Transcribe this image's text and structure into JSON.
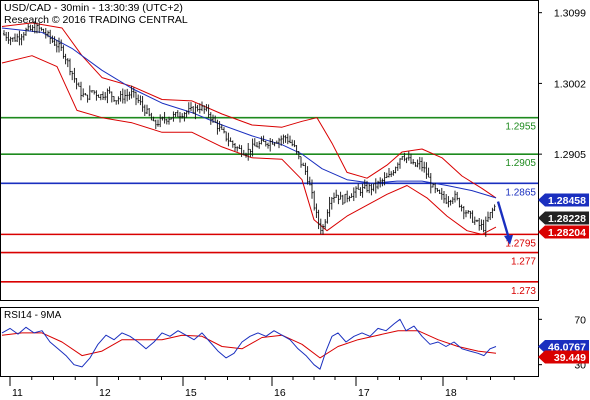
{
  "header": {
    "title": "USD/CAD - 30min - 13:30:39 (UTC+2)",
    "copyright": "Research © 2016 TRADING CENTRAL"
  },
  "rsi_panel": {
    "label": "RSI14 - 9MA"
  },
  "chart_data": [
    {
      "type": "candlestick",
      "ylim": [
        1.2705,
        1.3115
      ],
      "y_ticks": [
        "1.3099",
        "1.3002",
        "1.2905"
      ],
      "x_ticks": [
        "11",
        "12",
        "15",
        "16",
        "17",
        "18"
      ],
      "levels": [
        {
          "value": 1.2955,
          "label": "1.2955",
          "color": "#1e8a1e"
        },
        {
          "value": 1.2905,
          "label": "1.2905",
          "color": "#1e8a1e"
        },
        {
          "value": 1.2865,
          "label": "1.2865",
          "color": "#1a2fbf"
        },
        {
          "value": 1.2795,
          "label": "1.2795",
          "color": "#d90000"
        },
        {
          "value": 1.277,
          "label": "1.277",
          "color": "#d90000"
        },
        {
          "value": 1.273,
          "label": "1.273",
          "color": "#d90000"
        }
      ],
      "price_tags": [
        {
          "value": 1.28458,
          "label": "1.28458",
          "bg": "#1a2fbf",
          "fg": "#ffffff"
        },
        {
          "value": 1.28228,
          "label": "1.28228",
          "bg": "#222222",
          "fg": "#ffffff"
        },
        {
          "value": 1.28204,
          "label": "1.28204",
          "bg": "#d90000",
          "fg": "#ffffff"
        }
      ],
      "price_path": [
        [
          0,
          1.307
        ],
        [
          12,
          1.3062
        ],
        [
          24,
          1.3074
        ],
        [
          36,
          1.3078
        ],
        [
          44,
          1.307
        ],
        [
          52,
          1.3058
        ],
        [
          60,
          1.3048
        ],
        [
          66,
          1.303
        ],
        [
          72,
          1.301
        ],
        [
          78,
          1.299
        ],
        [
          84,
          1.2982
        ],
        [
          90,
          1.2992
        ],
        [
          98,
          1.2985
        ],
        [
          106,
          1.299
        ],
        [
          114,
          1.298
        ],
        [
          122,
          1.2985
        ],
        [
          130,
          1.2988
        ],
        [
          138,
          1.2975
        ],
        [
          146,
          1.296
        ],
        [
          152,
          1.2945
        ],
        [
          158,
          1.295
        ],
        [
          166,
          1.2955
        ],
        [
          174,
          1.2958
        ],
        [
          182,
          1.2962
        ],
        [
          190,
          1.2965
        ],
        [
          198,
          1.297
        ],
        [
          206,
          1.2962
        ],
        [
          212,
          1.295
        ],
        [
          220,
          1.2935
        ],
        [
          228,
          1.2922
        ],
        [
          236,
          1.2912
        ],
        [
          244,
          1.2908
        ],
        [
          252,
          1.2915
        ],
        [
          260,
          1.292
        ],
        [
          268,
          1.2922
        ],
        [
          276,
          1.2925
        ],
        [
          284,
          1.2928
        ],
        [
          292,
          1.2915
        ],
        [
          298,
          1.2895
        ],
        [
          304,
          1.288
        ],
        [
          308,
          1.286
        ],
        [
          312,
          1.2835
        ],
        [
          316,
          1.2812
        ],
        [
          320,
          1.28
        ],
        [
          324,
          1.282
        ],
        [
          328,
          1.2845
        ],
        [
          334,
          1.285
        ],
        [
          340,
          1.2842
        ],
        [
          348,
          1.285
        ],
        [
          356,
          1.2855
        ],
        [
          364,
          1.2858
        ],
        [
          372,
          1.286
        ],
        [
          380,
          1.2868
        ],
        [
          388,
          1.2875
        ],
        [
          394,
          1.289
        ],
        [
          400,
          1.2905
        ],
        [
          406,
          1.2898
        ],
        [
          412,
          1.2888
        ],
        [
          418,
          1.2892
        ],
        [
          424,
          1.288
        ],
        [
          430,
          1.286
        ],
        [
          436,
          1.285
        ],
        [
          444,
          1.2842
        ],
        [
          452,
          1.2848
        ],
        [
          460,
          1.2832
        ],
        [
          468,
          1.282
        ],
        [
          476,
          1.2808
        ],
        [
          482,
          1.2804
        ],
        [
          488,
          1.2822
        ],
        [
          494,
          1.2836
        ]
      ],
      "forecast_arrow": {
        "from": [
          496,
          1.284
        ],
        "to": [
          507,
          1.2782
        ]
      },
      "bands": {
        "upper": [
          [
            0,
            1.308
          ],
          [
            30,
            1.3085
          ],
          [
            60,
            1.3078
          ],
          [
            80,
            1.304
          ],
          [
            100,
            1.301
          ],
          [
            130,
            1.2998
          ],
          [
            160,
            1.298
          ],
          [
            190,
            1.2978
          ],
          [
            220,
            1.296
          ],
          [
            250,
            1.2945
          ],
          [
            280,
            1.2942
          ],
          [
            300,
            1.295
          ],
          [
            315,
            1.2955
          ],
          [
            330,
            1.292
          ],
          [
            345,
            1.288
          ],
          [
            365,
            1.2872
          ],
          [
            385,
            1.289
          ],
          [
            400,
            1.2908
          ],
          [
            420,
            1.2912
          ],
          [
            440,
            1.29
          ],
          [
            460,
            1.2875
          ],
          [
            480,
            1.2858
          ],
          [
            494,
            1.2845
          ]
        ],
        "lower": [
          [
            0,
            1.303
          ],
          [
            30,
            1.304
          ],
          [
            55,
            1.3025
          ],
          [
            75,
            1.2965
          ],
          [
            100,
            1.2955
          ],
          [
            130,
            1.2948
          ],
          [
            160,
            1.2935
          ],
          [
            190,
            1.2935
          ],
          [
            220,
            1.2915
          ],
          [
            250,
            1.29
          ],
          [
            280,
            1.2898
          ],
          [
            300,
            1.287
          ],
          [
            312,
            1.2815
          ],
          [
            325,
            1.28
          ],
          [
            345,
            1.282
          ],
          [
            365,
            1.2835
          ],
          [
            385,
            1.285
          ],
          [
            405,
            1.2862
          ],
          [
            425,
            1.2845
          ],
          [
            445,
            1.282
          ],
          [
            465,
            1.28
          ],
          [
            480,
            1.2795
          ],
          [
            494,
            1.2805
          ]
        ]
      },
      "moving_average": [
        [
          0,
          1.3078
        ],
        [
          40,
          1.3072
        ],
        [
          70,
          1.305
        ],
        [
          100,
          1.302
        ],
        [
          130,
          1.2995
        ],
        [
          160,
          1.2975
        ],
        [
          190,
          1.2962
        ],
        [
          220,
          1.2945
        ],
        [
          250,
          1.293
        ],
        [
          280,
          1.2918
        ],
        [
          300,
          1.2905
        ],
        [
          320,
          1.2885
        ],
        [
          345,
          1.287
        ],
        [
          370,
          1.2865
        ],
        [
          395,
          1.2868
        ],
        [
          420,
          1.2868
        ],
        [
          445,
          1.2862
        ],
        [
          470,
          1.2855
        ],
        [
          494,
          1.2845
        ]
      ]
    },
    {
      "type": "line",
      "title": "RSI14 - 9MA",
      "ylim": [
        20,
        80
      ],
      "y_ticks": [
        "70",
        "30"
      ],
      "price_tags": [
        {
          "value": 46.0767,
          "label": "46.0767",
          "bg": "#1a2fbf",
          "fg": "#ffffff"
        },
        {
          "value": 39.449,
          "label": "39.449",
          "bg": "#d90000",
          "fg": "#ffffff"
        }
      ],
      "series": [
        {
          "color": "#1a2fbf",
          "points": [
            [
              0,
              58
            ],
            [
              8,
              62
            ],
            [
              16,
              57
            ],
            [
              24,
              63
            ],
            [
              32,
              58
            ],
            [
              40,
              60
            ],
            [
              48,
              50
            ],
            [
              56,
              44
            ],
            [
              64,
              38
            ],
            [
              72,
              30
            ],
            [
              80,
              28
            ],
            [
              88,
              36
            ],
            [
              96,
              48
            ],
            [
              104,
              56
            ],
            [
              112,
              52
            ],
            [
              120,
              58
            ],
            [
              128,
              55
            ],
            [
              136,
              50
            ],
            [
              144,
              44
            ],
            [
              152,
              50
            ],
            [
              160,
              58
            ],
            [
              168,
              55
            ],
            [
              176,
              60
            ],
            [
              184,
              56
            ],
            [
              192,
              52
            ],
            [
              200,
              58
            ],
            [
              208,
              50
            ],
            [
              216,
              42
            ],
            [
              224,
              36
            ],
            [
              232,
              40
            ],
            [
              240,
              50
            ],
            [
              248,
              55
            ],
            [
              256,
              58
            ],
            [
              264,
              55
            ],
            [
              272,
              60
            ],
            [
              280,
              56
            ],
            [
              288,
              52
            ],
            [
              296,
              44
            ],
            [
              304,
              38
            ],
            [
              312,
              30
            ],
            [
              318,
              26
            ],
            [
              324,
              42
            ],
            [
              330,
              55
            ],
            [
              336,
              58
            ],
            [
              344,
              50
            ],
            [
              352,
              55
            ],
            [
              360,
              58
            ],
            [
              368,
              55
            ],
            [
              376,
              62
            ],
            [
              384,
              60
            ],
            [
              392,
              66
            ],
            [
              398,
              70
            ],
            [
              404,
              60
            ],
            [
              412,
              64
            ],
            [
              420,
              55
            ],
            [
              428,
              48
            ],
            [
              436,
              50
            ],
            [
              444,
              46
            ],
            [
              452,
              50
            ],
            [
              460,
              44
            ],
            [
              468,
              42
            ],
            [
              476,
              40
            ],
            [
              482,
              38
            ],
            [
              488,
              44
            ],
            [
              494,
              46
            ]
          ]
        },
        {
          "color": "#d90000",
          "points": [
            [
              0,
              56
            ],
            [
              20,
              58
            ],
            [
              40,
              58
            ],
            [
              60,
              50
            ],
            [
              80,
              38
            ],
            [
              100,
              42
            ],
            [
              120,
              52
            ],
            [
              140,
              52
            ],
            [
              160,
              52
            ],
            [
              180,
              56
            ],
            [
              200,
              55
            ],
            [
              220,
              46
            ],
            [
              240,
              44
            ],
            [
              260,
              54
            ],
            [
              280,
              56
            ],
            [
              300,
              48
            ],
            [
              318,
              36
            ],
            [
              336,
              46
            ],
            [
              356,
              52
            ],
            [
              376,
              56
            ],
            [
              396,
              60
            ],
            [
              416,
              60
            ],
            [
              436,
              52
            ],
            [
              456,
              46
            ],
            [
              476,
              42
            ],
            [
              494,
              40
            ]
          ]
        }
      ]
    }
  ]
}
